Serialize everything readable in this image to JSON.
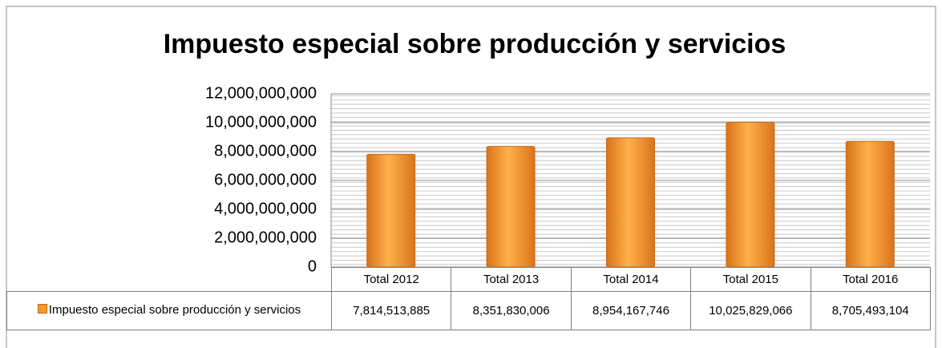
{
  "chart_data": {
    "type": "bar",
    "title": "Impuesto especial sobre producción y servicios",
    "categories": [
      "Total 2012",
      "Total 2013",
      "Total 2014",
      "Total 2015",
      "Total 2016"
    ],
    "series": [
      {
        "name": "Impuesto especial sobre producción y servicios",
        "color": "#f39a2d",
        "values": [
          7814513885,
          8351830006,
          8954167746,
          10025829066,
          8705493104
        ],
        "value_labels": [
          "7,814,513,885",
          "8,351,830,006",
          "8,954,167,746",
          "10,025,829,066",
          "8,705,493,104"
        ]
      }
    ],
    "ylim": [
      0,
      12000000000
    ],
    "yticks": [
      0,
      {
        "value": 2000000000,
        "label": "2,000,000,000"
      },
      {
        "value": 4000000000,
        "label": "4,000,000,000"
      },
      {
        "value": 6000000000,
        "label": "6,000,000,000"
      },
      {
        "value": 8000000000,
        "label": "8,000,000,000"
      },
      {
        "value": 10000000000,
        "label": "10,000,000,000"
      },
      {
        "value": 12000000000,
        "label": "12,000,000,000"
      }
    ],
    "grid": true,
    "legend": "bottom"
  }
}
